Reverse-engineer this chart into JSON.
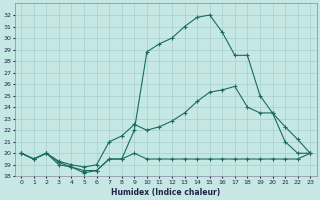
{
  "xlabel": "Humidex (Indice chaleur)",
  "bg_color": "#c5e8e5",
  "grid_color": "#a8cece",
  "line_color": "#1a6b60",
  "xlim": [
    -0.5,
    23.5
  ],
  "ylim": [
    18,
    33
  ],
  "xticks": [
    0,
    1,
    2,
    3,
    4,
    5,
    6,
    7,
    8,
    9,
    10,
    11,
    12,
    13,
    14,
    15,
    16,
    17,
    18,
    19,
    20,
    21,
    22,
    23
  ],
  "yticks": [
    18,
    19,
    20,
    21,
    22,
    23,
    24,
    25,
    26,
    27,
    28,
    29,
    30,
    31,
    32
  ],
  "line1_x": [
    0,
    1,
    2,
    3,
    4,
    5,
    6,
    7,
    8,
    9,
    10,
    11,
    12,
    13,
    14,
    15,
    16,
    17,
    18,
    19,
    20,
    21,
    22,
    23
  ],
  "line1_y": [
    20.0,
    19.5,
    20.0,
    19.0,
    18.8,
    18.5,
    18.5,
    19.5,
    19.5,
    20.0,
    19.5,
    19.5,
    19.5,
    19.5,
    19.5,
    19.5,
    19.5,
    19.5,
    19.5,
    19.5,
    19.5,
    19.5,
    19.5,
    20.0
  ],
  "line2_x": [
    0,
    1,
    2,
    3,
    4,
    5,
    6,
    7,
    8,
    9,
    10,
    11,
    12,
    13,
    14,
    15,
    16,
    17,
    18,
    19,
    20,
    21,
    22,
    23
  ],
  "line2_y": [
    20.0,
    19.5,
    20.0,
    19.3,
    19.0,
    18.8,
    19.0,
    21.0,
    21.5,
    22.5,
    22.0,
    22.3,
    22.8,
    23.5,
    24.5,
    25.3,
    25.5,
    25.8,
    24.0,
    23.5,
    23.5,
    22.3,
    21.2,
    20.0
  ],
  "line3_x": [
    0,
    1,
    2,
    3,
    4,
    5,
    6,
    7,
    8,
    9,
    10,
    11,
    12,
    13,
    14,
    15,
    16,
    17,
    18,
    19,
    20,
    21,
    22,
    23
  ],
  "line3_y": [
    20.0,
    19.5,
    20.0,
    19.2,
    18.8,
    18.3,
    18.5,
    19.5,
    19.5,
    22.0,
    28.8,
    29.5,
    30.0,
    31.0,
    31.8,
    32.0,
    30.5,
    28.5,
    28.5,
    25.0,
    23.5,
    21.0,
    20.0,
    20.0
  ]
}
